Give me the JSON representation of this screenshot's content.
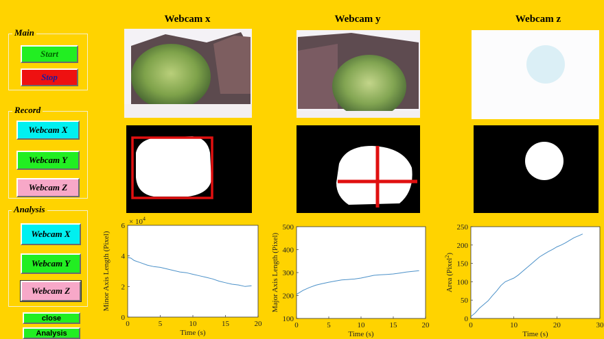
{
  "controls": {
    "main": {
      "title": "Main",
      "start_label": "Start",
      "stop_label": "Stop"
    },
    "record": {
      "title": "Record",
      "webcam_x_label": "Webcam X",
      "webcam_y_label": "Webcam Y",
      "webcam_z_label": "Webcam Z"
    },
    "analysis": {
      "title": "Analysis",
      "webcam_x_label": "Webcam X",
      "webcam_y_label": "Webcam Y",
      "webcam_z_label": "Webcam Z"
    },
    "close_label": "close",
    "analysis_button_label": "Analysis"
  },
  "cameras": [
    {
      "title": "Webcam x"
    },
    {
      "title": "Webcam y"
    },
    {
      "title": "Webcam z"
    }
  ],
  "colors": {
    "background": "#FFD300",
    "start": "#22EE22",
    "stop": "#EE1111",
    "webcam_x": "#00F0F0",
    "webcam_y": "#22EE22",
    "webcam_z": "#F7A8C8",
    "overlay": "#E01010",
    "line": "#4A90C8"
  },
  "chart_data": [
    {
      "type": "line",
      "xlabel": "Time (s)",
      "ylabel": "Minor Axis Length (Pixel)",
      "exponent_label": "× 10",
      "exponent_power": "4",
      "xlim": [
        0,
        20
      ],
      "ylim": [
        0,
        6
      ],
      "xticks": [
        "0",
        "5",
        "10",
        "15",
        "20"
      ],
      "yticks": [
        "0",
        "2",
        "4",
        "6"
      ],
      "x": [
        0,
        0.5,
        1,
        2,
        3,
        4,
        5,
        6,
        7,
        8,
        9,
        10,
        11,
        12,
        13,
        14,
        15,
        16,
        17,
        18,
        19
      ],
      "y": [
        3.9,
        3.85,
        3.7,
        3.55,
        3.4,
        3.3,
        3.25,
        3.15,
        3.05,
        2.95,
        2.9,
        2.8,
        2.7,
        2.6,
        2.5,
        2.35,
        2.25,
        2.15,
        2.1,
        2.0,
        2.05
      ]
    },
    {
      "type": "line",
      "xlabel": "Time (s)",
      "ylabel": "Major Axis Length (Pixel)",
      "xlim": [
        0,
        20
      ],
      "ylim": [
        100,
        500
      ],
      "xticks": [
        "0",
        "5",
        "10",
        "15",
        "20"
      ],
      "yticks": [
        "100",
        "200",
        "300",
        "400",
        "500"
      ],
      "x": [
        0,
        1,
        2,
        3,
        4,
        5,
        6,
        7,
        8,
        9,
        10,
        11,
        12,
        13,
        14,
        15,
        16,
        17,
        18,
        19
      ],
      "y": [
        205,
        222,
        235,
        245,
        252,
        258,
        263,
        268,
        270,
        272,
        276,
        282,
        288,
        290,
        292,
        294,
        298,
        302,
        305,
        308
      ]
    },
    {
      "type": "line",
      "xlabel": "Time (s)",
      "ylabel": "Area (Pixel",
      "ylabel_sup": "2",
      "ylabel_end": ")",
      "xlim": [
        0,
        30
      ],
      "ylim": [
        0,
        250
      ],
      "xticks": [
        "0",
        "10",
        "20",
        "30"
      ],
      "yticks": [
        "0",
        "50",
        "100",
        "150",
        "200",
        "250"
      ],
      "x": [
        0,
        1,
        2,
        3,
        4,
        5,
        6,
        7,
        8,
        9,
        10,
        11,
        12,
        13,
        14,
        15,
        16,
        17,
        18,
        19,
        20,
        21,
        22,
        23,
        24,
        25,
        26
      ],
      "y": [
        5,
        15,
        28,
        38,
        48,
        62,
        75,
        90,
        100,
        105,
        110,
        118,
        128,
        138,
        148,
        158,
        168,
        175,
        182,
        188,
        195,
        200,
        206,
        213,
        220,
        225,
        230
      ]
    }
  ]
}
